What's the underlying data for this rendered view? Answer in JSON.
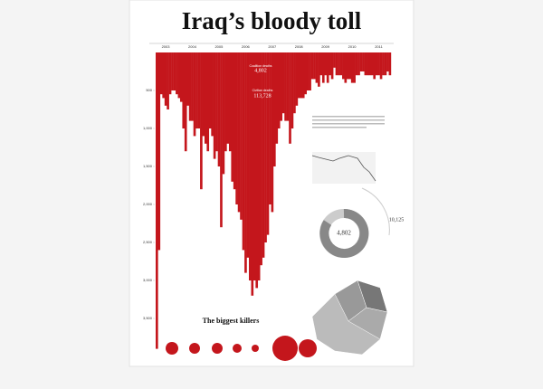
{
  "poster": {
    "title": "Iraq’s bloody toll",
    "killers_title": "The biggest killers",
    "coalition_label": "Coalition deaths",
    "coalition_total": "4,802",
    "civilian_label": "Civilian deaths",
    "civilian_total": "113,728",
    "panel_coalition_total": "4,802",
    "panel_other_total": "10,125"
  },
  "chart_data": {
    "type": "bar",
    "years": [
      "2003",
      "2004",
      "2005",
      "2006",
      "2007",
      "2008",
      "2009",
      "2010",
      "2011"
    ],
    "values": [
      3900,
      2600,
      550,
      600,
      700,
      750,
      550,
      500,
      500,
      550,
      600,
      650,
      1000,
      1300,
      700,
      900,
      900,
      1100,
      1000,
      1000,
      1800,
      1100,
      1200,
      1300,
      1000,
      1100,
      1400,
      1300,
      1500,
      2300,
      1600,
      1300,
      1200,
      1300,
      1700,
      1800,
      2000,
      2100,
      2200,
      2600,
      2900,
      2700,
      3000,
      3200,
      3000,
      3100,
      3000,
      2800,
      2700,
      2500,
      2400,
      2000,
      2100,
      1500,
      1200,
      1000,
      900,
      800,
      900,
      900,
      1200,
      1000,
      800,
      700,
      600,
      600,
      600,
      550,
      500,
      500,
      350,
      350,
      400,
      450,
      300,
      400,
      300,
      400,
      300,
      350,
      200,
      300,
      300,
      300,
      350,
      400,
      350,
      350,
      400,
      400,
      300,
      300,
      250,
      250,
      300,
      300,
      300,
      300,
      350,
      300,
      300,
      350,
      300,
      300,
      250,
      300
    ],
    "color": "#c4161c",
    "ylim": [
      0,
      4000
    ],
    "yticks": [
      {
        "value": 500,
        "label": "500"
      },
      {
        "value": 1000,
        "label": "1,000"
      },
      {
        "value": 1500,
        "label": "1,500"
      },
      {
        "value": 2000,
        "label": "2,000"
      },
      {
        "value": 2500,
        "label": "2,500"
      },
      {
        "value": 3000,
        "label": "3,000"
      },
      {
        "value": 3500,
        "label": "3,500"
      }
    ]
  }
}
